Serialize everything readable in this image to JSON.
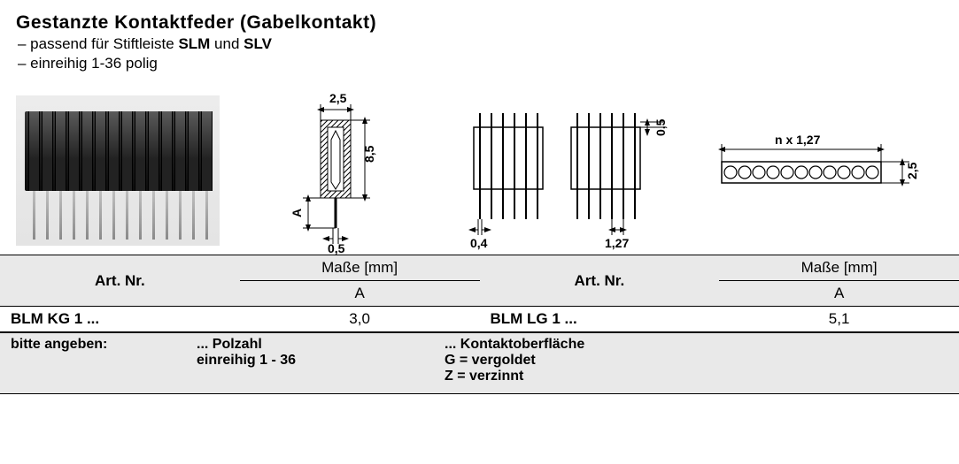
{
  "header": {
    "title": "Gestanzte Kontaktfeder (Gabelkontakt)",
    "line1_prefix": "– passend für Stiftleiste ",
    "line1_b1": "SLM",
    "line1_mid": " und ",
    "line1_b2": "SLV",
    "line2": "– einreihig 1-36 polig"
  },
  "drawing1": {
    "dim_width": "2,5",
    "dim_height": "8,5",
    "dim_pin_len": "A",
    "dim_pin_dia": "0,5"
  },
  "drawing2": {
    "dim_pin_dia": "0,4",
    "dim_pitch": "1,27",
    "dim_top_offset": "0,5"
  },
  "drawing3": {
    "dim_length": "n x 1,27",
    "dim_height": "2,5"
  },
  "table": {
    "hdr_artnr": "Art. Nr.",
    "hdr_masse": "Maße [mm]",
    "hdr_A": "A",
    "row1_name": "BLM KG 1 ...",
    "row1_val": "3,0",
    "row2_name": "BLM LG 1 ...",
    "row2_val": "5,1"
  },
  "legend": {
    "bitte": "bitte angeben:",
    "polzahl_dots": "... Polzahl",
    "polzahl_sub": "einreihig  1 - 36",
    "kontakt_dots": "... Kontaktoberfläche",
    "kontakt_g": "G = vergoldet",
    "kontakt_z": "Z = verzinnt"
  },
  "colors": {
    "bg_grey": "#e9e9e9",
    "line": "#000000",
    "white": "#ffffff"
  }
}
